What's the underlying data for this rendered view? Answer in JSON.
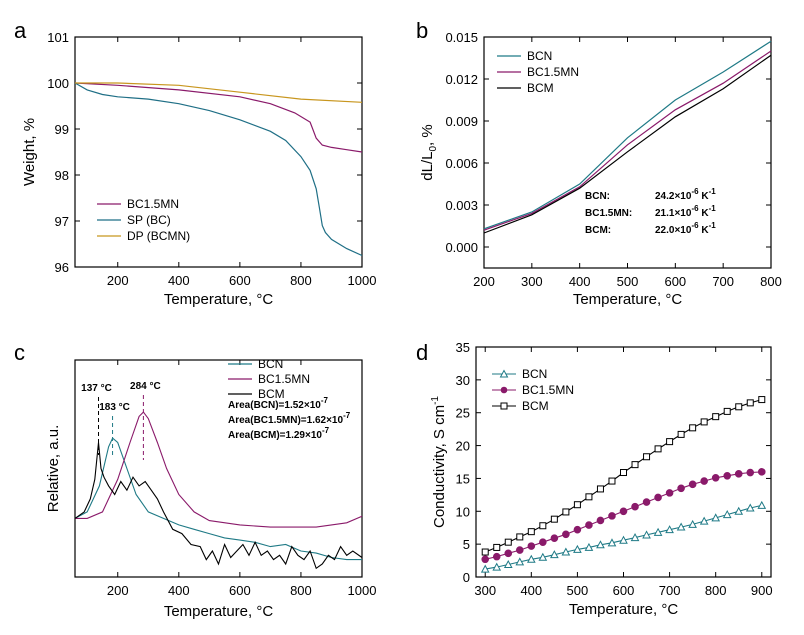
{
  "colors": {
    "bcn": "#1f7a86",
    "bc15mn": "#8a1a6a",
    "bcm": "#000000",
    "dp": "#c8961e",
    "sp": "#1f6f86"
  },
  "chart_data": [
    {
      "panel": "a",
      "type": "line",
      "xlabel": "Temperature, °C",
      "ylabel": "Weight, %",
      "xlim": [
        60,
        1000
      ],
      "ylim": [
        96,
        101
      ],
      "xticks": [
        200,
        400,
        600,
        800,
        1000
      ],
      "yticks": [
        96,
        97,
        98,
        99,
        100,
        101
      ],
      "legend": [
        "BC1.5MN",
        "SP (BC)",
        "DP (BCMN)"
      ],
      "series": [
        {
          "name": "BC1.5MN",
          "color": "bc15mn",
          "x": [
            60,
            200,
            400,
            600,
            700,
            780,
            830,
            850,
            870,
            900,
            950,
            1000
          ],
          "y": [
            100.0,
            99.95,
            99.85,
            99.7,
            99.55,
            99.35,
            99.15,
            98.8,
            98.65,
            98.6,
            98.55,
            98.5
          ]
        },
        {
          "name": "SP (BC)",
          "color": "sp",
          "x": [
            60,
            100,
            150,
            200,
            300,
            400,
            500,
            600,
            700,
            750,
            800,
            830,
            850,
            860,
            870,
            880,
            900,
            950,
            1000
          ],
          "y": [
            100.0,
            99.85,
            99.75,
            99.7,
            99.65,
            99.55,
            99.4,
            99.2,
            98.95,
            98.75,
            98.4,
            98.1,
            97.7,
            97.3,
            96.9,
            96.75,
            96.6,
            96.4,
            96.25
          ]
        },
        {
          "name": "DP (BCMN)",
          "color": "dp",
          "x": [
            60,
            200,
            400,
            600,
            800,
            1000
          ],
          "y": [
            100.0,
            100.0,
            99.95,
            99.8,
            99.65,
            99.58
          ]
        }
      ]
    },
    {
      "panel": "b",
      "type": "line",
      "xlabel": "Temperature, °C",
      "ylabel": "dL/L0, %",
      "xlim": [
        200,
        800
      ],
      "ylim": [
        -0.0015,
        0.015
      ],
      "xticks": [
        200,
        300,
        400,
        500,
        600,
        700,
        800
      ],
      "yticks": [
        0.0,
        0.003,
        0.006,
        0.009,
        0.012,
        0.015
      ],
      "ytick_labels": [
        "0.000",
        "0.003",
        "0.006",
        "0.009",
        "0.012",
        "0.015"
      ],
      "legend": [
        "BCN",
        "BC1.5MN",
        "BCM"
      ],
      "annotations": [
        {
          "label": "BCN:",
          "value": "24.2×10",
          "exp": "-6",
          "unit": " K",
          "uexp": "-1",
          "color": "bcn"
        },
        {
          "label": "BC1.5MN:",
          "value": "21.1×10",
          "exp": "-6",
          "unit": " K",
          "uexp": "-1",
          "color": "bc15mn"
        },
        {
          "label": "BCM:",
          "value": "22.0×10",
          "exp": "-6",
          "unit": " K",
          "uexp": "-1",
          "color": "bcm"
        }
      ],
      "series": [
        {
          "name": "BCN",
          "color": "bcn",
          "x": [
            200,
            300,
            400,
            500,
            600,
            700,
            800
          ],
          "y": [
            0.0013,
            0.0025,
            0.0045,
            0.0078,
            0.0105,
            0.0125,
            0.0147
          ]
        },
        {
          "name": "BC1.5MN",
          "color": "bc15mn",
          "x": [
            200,
            300,
            400,
            500,
            600,
            700,
            800
          ],
          "y": [
            0.0012,
            0.0024,
            0.0043,
            0.0073,
            0.0098,
            0.0117,
            0.014
          ]
        },
        {
          "name": "BCM",
          "color": "bcm",
          "x": [
            200,
            300,
            400,
            500,
            600,
            700,
            800
          ],
          "y": [
            0.001,
            0.0023,
            0.0042,
            0.0068,
            0.0093,
            0.0113,
            0.0137
          ]
        }
      ]
    },
    {
      "panel": "c",
      "type": "line",
      "xlabel": "Temperature, °C",
      "ylabel": "Relative, a.u.",
      "xlim": [
        60,
        1000
      ],
      "ylim": [
        0,
        1
      ],
      "xticks": [
        200,
        400,
        600,
        800,
        1000
      ],
      "legend": [
        "BCN",
        "BC1.5MN",
        "BCM"
      ],
      "peaks": [
        {
          "label": "137 °C",
          "x": 137,
          "color": "bcm"
        },
        {
          "label": "183 °C",
          "x": 183,
          "color": "bcn"
        },
        {
          "label": "284 °C",
          "x": 284,
          "color": "bc15mn"
        }
      ],
      "areas": [
        {
          "text": "Area(BCN)=1.52×10",
          "exp": "-7",
          "color": "bcn"
        },
        {
          "text": "Area(BC1.5MN)=1.62×10",
          "exp": "-7",
          "color": "bc15mn"
        },
        {
          "text": "Area(BCM)=1.29×10",
          "exp": "-7",
          "color": "bcm"
        }
      ],
      "series": [
        {
          "name": "BCN",
          "color": "bcn",
          "x": [
            60,
            100,
            140,
            170,
            183,
            200,
            230,
            260,
            300,
            350,
            400,
            450,
            500,
            550,
            600,
            650,
            700,
            750,
            800,
            850,
            900,
            950,
            1000
          ],
          "y": [
            0.27,
            0.3,
            0.42,
            0.6,
            0.64,
            0.62,
            0.5,
            0.38,
            0.3,
            0.27,
            0.24,
            0.22,
            0.2,
            0.18,
            0.17,
            0.16,
            0.14,
            0.15,
            0.12,
            0.11,
            0.09,
            0.08,
            0.08
          ]
        },
        {
          "name": "BC1.5MN",
          "color": "bc15mn",
          "x": [
            60,
            100,
            150,
            200,
            240,
            270,
            284,
            300,
            330,
            360,
            400,
            450,
            500,
            600,
            700,
            800,
            850,
            900,
            950,
            1000
          ],
          "y": [
            0.27,
            0.27,
            0.3,
            0.45,
            0.62,
            0.74,
            0.76,
            0.73,
            0.62,
            0.5,
            0.38,
            0.3,
            0.26,
            0.24,
            0.23,
            0.23,
            0.23,
            0.24,
            0.25,
            0.28
          ]
        },
        {
          "name": "BCM",
          "color": "bcm",
          "x": [
            60,
            90,
            110,
            125,
            137,
            145,
            155,
            170,
            190,
            210,
            230,
            250,
            270,
            290,
            310,
            330,
            350,
            380,
            410,
            440,
            470,
            490,
            510,
            530,
            550,
            570,
            590,
            610,
            630,
            650,
            670,
            690,
            710,
            730,
            750,
            770,
            790,
            810,
            830,
            850,
            870,
            890,
            910,
            930,
            950,
            970,
            1000
          ],
          "y": [
            0.27,
            0.3,
            0.36,
            0.45,
            0.62,
            0.5,
            0.46,
            0.42,
            0.38,
            0.44,
            0.4,
            0.46,
            0.42,
            0.44,
            0.4,
            0.36,
            0.3,
            0.22,
            0.2,
            0.15,
            0.14,
            0.08,
            0.12,
            0.06,
            0.15,
            0.09,
            0.12,
            0.15,
            0.1,
            0.16,
            0.1,
            0.12,
            0.08,
            0.1,
            0.06,
            0.14,
            0.1,
            0.08,
            0.12,
            0.04,
            0.06,
            0.1,
            0.08,
            0.14,
            0.1,
            0.12,
            0.09
          ]
        }
      ]
    },
    {
      "panel": "d",
      "type": "line",
      "xlabel": "Temperature, °C",
      "ylabel": "Conductivity, S cm-1",
      "xlim": [
        280,
        920
      ],
      "ylim": [
        0,
        35
      ],
      "xticks": [
        300,
        400,
        500,
        600,
        700,
        800,
        900
      ],
      "yticks": [
        0,
        5,
        10,
        15,
        20,
        25,
        30,
        35
      ],
      "legend": [
        "BCN",
        "BC1.5MN",
        "BCM"
      ],
      "series": [
        {
          "name": "BCN",
          "color": "bcn",
          "marker": "triangle-open",
          "x": [
            300,
            325,
            350,
            375,
            400,
            425,
            450,
            475,
            500,
            525,
            550,
            575,
            600,
            625,
            650,
            675,
            700,
            725,
            750,
            775,
            800,
            825,
            850,
            875,
            900
          ],
          "y": [
            1.2,
            1.5,
            1.9,
            2.3,
            2.7,
            3.0,
            3.4,
            3.8,
            4.2,
            4.5,
            4.9,
            5.2,
            5.6,
            6.0,
            6.4,
            6.8,
            7.2,
            7.6,
            8.0,
            8.5,
            9.0,
            9.5,
            10.0,
            10.5,
            10.9
          ]
        },
        {
          "name": "BC1.5MN",
          "color": "bc15mn",
          "marker": "circle-filled",
          "x": [
            300,
            325,
            350,
            375,
            400,
            425,
            450,
            475,
            500,
            525,
            550,
            575,
            600,
            625,
            650,
            675,
            700,
            725,
            750,
            775,
            800,
            825,
            850,
            875,
            900
          ],
          "y": [
            2.7,
            3.1,
            3.6,
            4.1,
            4.7,
            5.3,
            5.9,
            6.5,
            7.2,
            7.9,
            8.6,
            9.3,
            10.0,
            10.7,
            11.4,
            12.1,
            12.8,
            13.5,
            14.1,
            14.6,
            15.1,
            15.4,
            15.7,
            15.9,
            16.0
          ]
        },
        {
          "name": "BCM",
          "color": "bcm",
          "marker": "square-open",
          "x": [
            300,
            325,
            350,
            375,
            400,
            425,
            450,
            475,
            500,
            525,
            550,
            575,
            600,
            625,
            650,
            675,
            700,
            725,
            750,
            775,
            800,
            825,
            850,
            875,
            900
          ],
          "y": [
            3.8,
            4.5,
            5.3,
            6.1,
            6.9,
            7.8,
            8.8,
            9.9,
            11.0,
            12.2,
            13.4,
            14.6,
            15.9,
            17.1,
            18.3,
            19.5,
            20.6,
            21.7,
            22.7,
            23.6,
            24.4,
            25.2,
            25.9,
            26.5,
            27.0
          ]
        }
      ]
    }
  ]
}
